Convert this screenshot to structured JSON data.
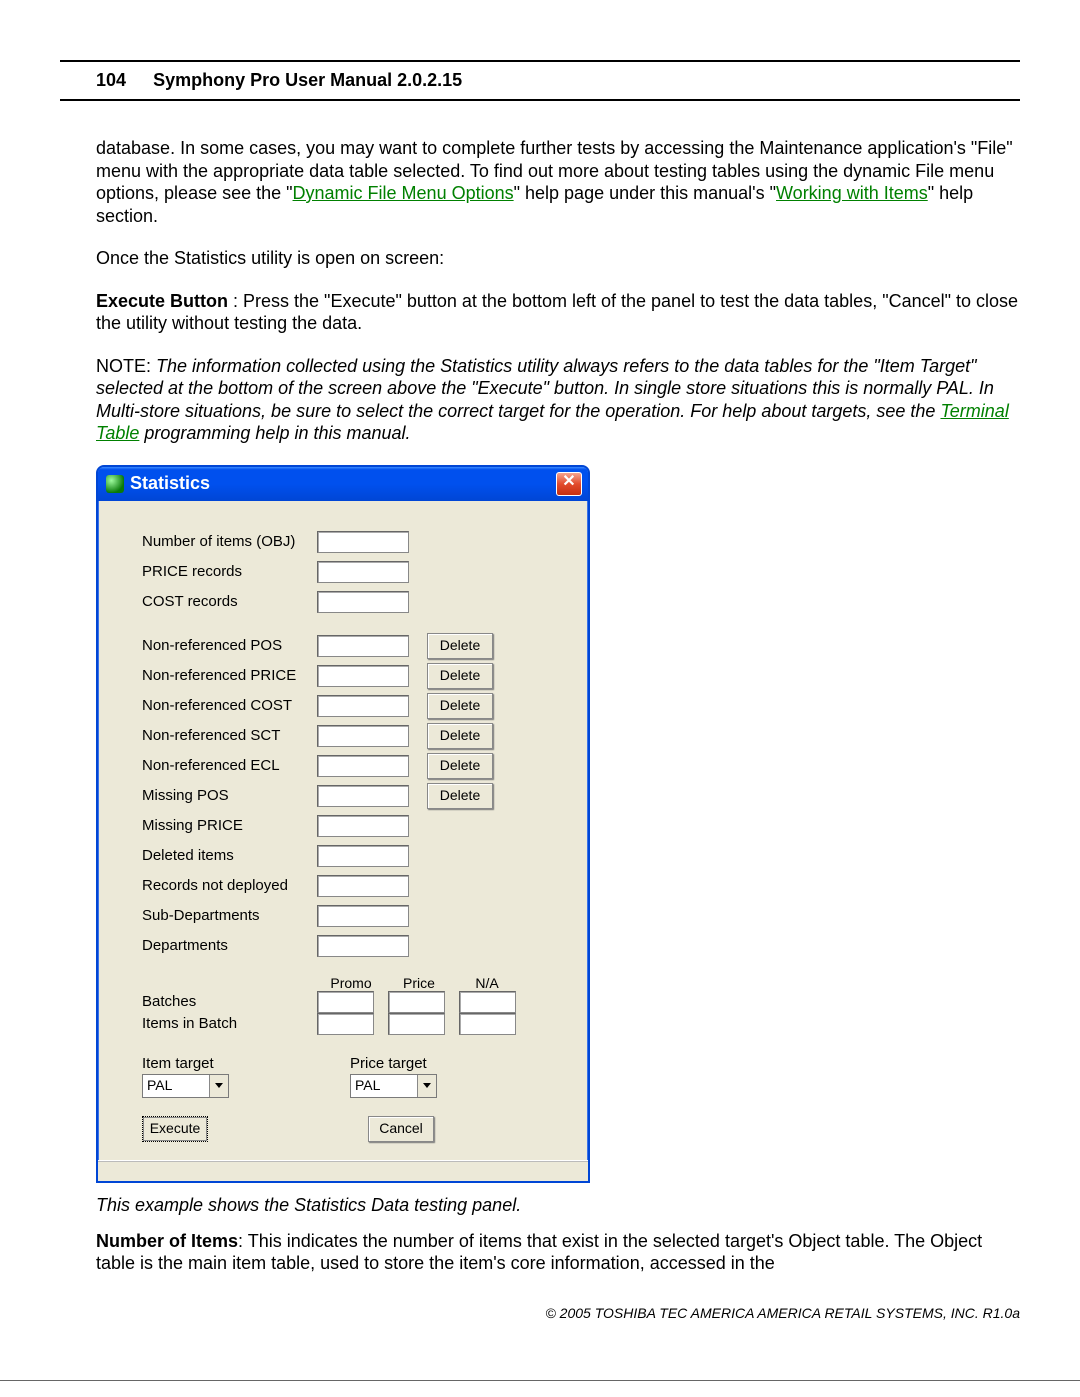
{
  "page_number": "104",
  "manual_title": "Symphony Pro User Manual  2.0.2.15",
  "para1_a": "database. In some cases, you may want to complete further tests by accessing the Maintenance application's \"File\" menu with the appropriate data table selected. To find out more about testing tables using the dynamic File menu options, please see the \"",
  "link_dynamic": "Dynamic File Menu Options",
  "para1_b": "\" help page under this manual's \"",
  "link_working": "Working with Items",
  "para1_c": "\" help section.",
  "para2": " Once the Statistics utility is open on screen:",
  "para3_bold": "Execute Button",
  "para3_rest": " : Press the \"Execute\" button at the bottom left of the panel to test the data tables, \"Cancel\" to close the utility without testing the data.",
  "note_prefix": "NOTE: ",
  "note_ital_a": "The information collected using the Statistics utility always refers to the data tables for the \"Item Target\" selected at the bottom of the screen above the \"Execute\" button. In single store situations this is normally PAL. In Multi-store situations, be sure to select the correct target for the operation. For help about targets, see the  ",
  "link_terminal": "Terminal Table",
  "note_ital_b": "  programming help in this manual.",
  "dialog": {
    "title": "Statistics",
    "rows_plain": [
      "Number of items (OBJ)",
      "PRICE records",
      "COST records"
    ],
    "rows_delete": [
      "Non-referenced POS",
      "Non-referenced PRICE",
      "Non-referenced COST",
      "Non-referenced SCT",
      "Non-referenced ECL",
      "Missing POS"
    ],
    "rows_after": [
      "Missing PRICE",
      "Deleted items",
      "Records not deployed",
      "Sub-Departments",
      "Departments"
    ],
    "delete_label": "Delete",
    "col_headers": {
      "promo": "Promo",
      "price": "Price",
      "na": "N/A"
    },
    "three_rows": [
      "Batches",
      "Items in Batch"
    ],
    "item_target_label": "Item target",
    "price_target_label": "Price target",
    "item_target_value": "PAL",
    "price_target_value": "PAL",
    "execute": "Execute",
    "cancel": "Cancel"
  },
  "caption": "This example shows the Statistics Data testing panel.",
  "after1_bold": "Number of Items",
  "after1_rest": ": This indicates the number of items that exist in the selected target's Object table. The Object table is the main item table, used to store the item's core information, accessed in the",
  "footer": "© 2005 TOSHIBA TEC AMERICA AMERICA RETAIL SYSTEMS, INC.   R1.0a"
}
